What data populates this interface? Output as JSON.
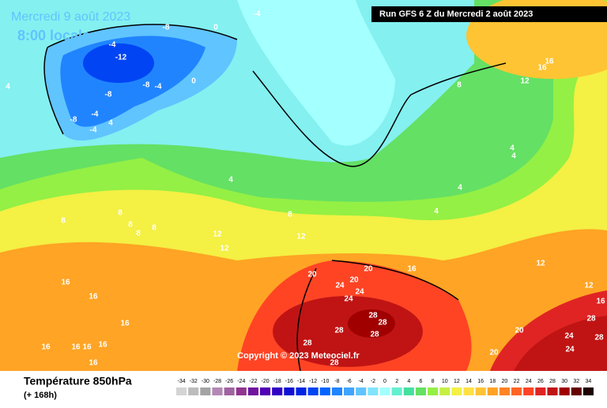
{
  "header": {
    "date": "Mercredi 9 août 2023",
    "time": "8:00 locale",
    "run": "Run GFS 6 Z du Mercredi 2 août 2023"
  },
  "footer": {
    "title": "Température 850hPa",
    "lead": "(+ 168h)",
    "copyright": "Copyright © 2023 Meteociel.fr"
  },
  "legend": {
    "values": [
      -34,
      -32,
      -30,
      -28,
      -26,
      -24,
      -22,
      -20,
      -18,
      -16,
      -14,
      -12,
      -10,
      -8,
      -6,
      -4,
      -2,
      0,
      2,
      4,
      6,
      8,
      10,
      12,
      14,
      16,
      18,
      20,
      22,
      24,
      26,
      28,
      30,
      32,
      34
    ],
    "colors": [
      "#d4d4d4",
      "#bcbcbc",
      "#a4a4a4",
      "#b488b4",
      "#a064a0",
      "#903490",
      "#7014a0",
      "#5000b4",
      "#3000c4",
      "#1010d4",
      "#0024e4",
      "#0044f4",
      "#0064ff",
      "#2084ff",
      "#40a4ff",
      "#60c4ff",
      "#80e4ff",
      "#a4ffff",
      "#64f0d0",
      "#44e0a0",
      "#64e064",
      "#94f044",
      "#c4f044",
      "#f4f044",
      "#ffe044",
      "#ffc434",
      "#ffa424",
      "#ff8424",
      "#ff6424",
      "#ff4424",
      "#e02424",
      "#c01414",
      "#a00000",
      "#640000",
      "#200000"
    ]
  },
  "map_labels": [
    "-8",
    "0",
    "-4",
    "-4",
    "-12",
    "-8",
    "-4",
    "0",
    "-8",
    "-8",
    "-4",
    "-4",
    "4",
    "4",
    "4",
    "8",
    "8",
    "8",
    "8",
    "8",
    "8",
    "12",
    "12",
    "12",
    "16",
    "16",
    "16",
    "16",
    "16",
    "16",
    "16",
    "16",
    "20",
    "20",
    "20",
    "24",
    "24",
    "24",
    "16",
    "28",
    "28",
    "28",
    "28",
    "28",
    "28",
    "20",
    "20",
    "24",
    "24",
    "28",
    "28",
    "12",
    "12",
    "16",
    "4",
    "4",
    "4",
    "4",
    "12",
    "16",
    "16",
    "8"
  ]
}
